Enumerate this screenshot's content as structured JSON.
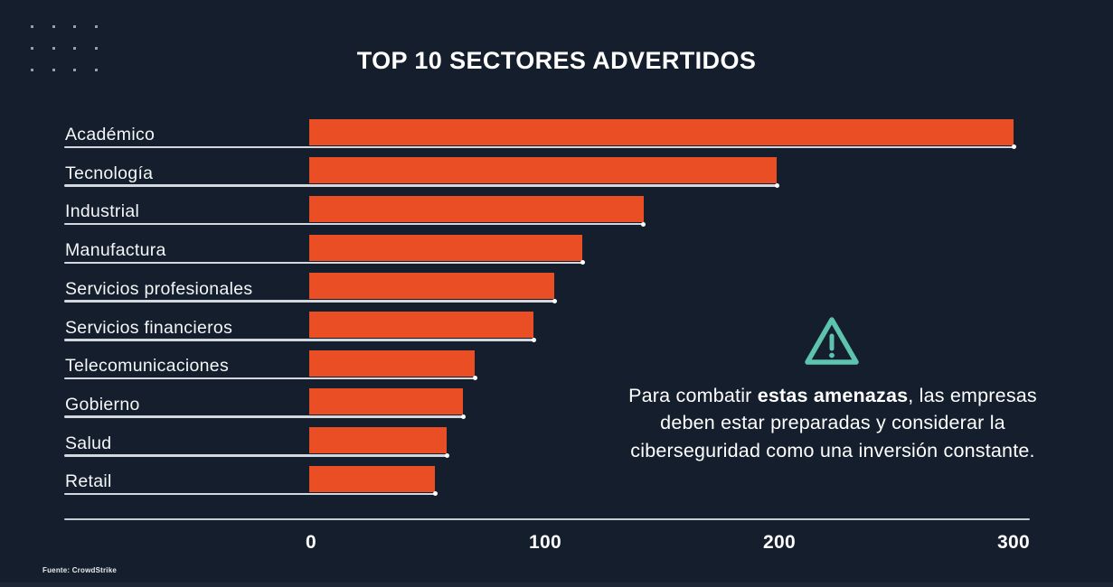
{
  "title": "TOP 10 SECTORES ADVERTIDOS",
  "chart_data": {
    "type": "bar",
    "orientation": "horizontal",
    "title": "TOP 10 SECTORES ADVERTIDOS",
    "categories": [
      "Académico",
      "Tecnología",
      "Industrial",
      "Manufactura",
      "Servicios profesionales",
      "Servicios financieros",
      "Telecomunicaciones",
      "Gobierno",
      "Salud",
      "Retail"
    ],
    "values": [
      300,
      199,
      142,
      116,
      104,
      95,
      70,
      65,
      58,
      53
    ],
    "x_ticks": [
      0,
      100,
      200,
      300
    ],
    "xlim": [
      0,
      300
    ],
    "xlabel": "",
    "ylabel": "",
    "grid": false,
    "legend": false,
    "bar_color": "#ea4e25"
  },
  "annotation": {
    "icon": "warning-triangle-icon",
    "icon_color": "#5ec3ae",
    "lines": [
      {
        "pre": "Para combatir ",
        "bold": "estas amenazas",
        "post": ", las empresas"
      },
      {
        "text": "deben estar preparadas y considerar la"
      },
      {
        "text": "ciberseguridad como una inversión constante."
      }
    ]
  },
  "footer": {
    "source": "Fuente: CrowdStrike"
  },
  "colors": {
    "background": "#141e2c",
    "bar": "#ea4e25",
    "accent_teal": "#5ec3ae",
    "text": "#ffffff",
    "line": "#c6ccd4"
  }
}
